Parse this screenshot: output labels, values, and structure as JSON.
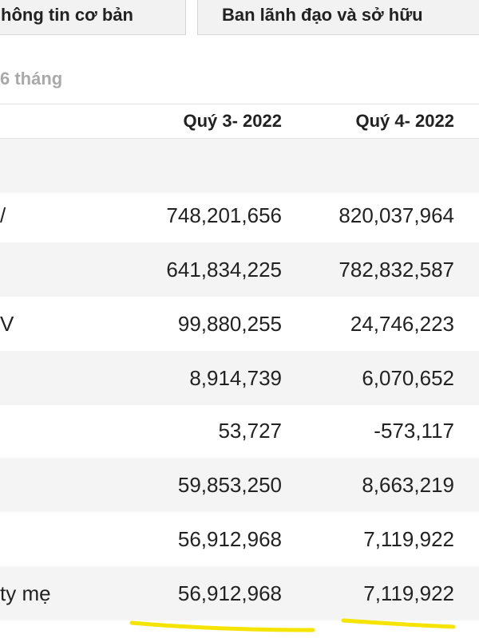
{
  "tabs": [
    {
      "label": "hông tin cơ bản"
    },
    {
      "label": "Ban lãnh đạo và sở hữu"
    }
  ],
  "period_label": "6 tháng",
  "table": {
    "headers": [
      "Quý 3- 2022",
      "Quý 4- 2022"
    ],
    "rows": [
      {
        "label": "",
        "q3": "",
        "q4": ""
      },
      {
        "label": "/",
        "q3": "748,201,656",
        "q4": "820,037,964"
      },
      {
        "label": "",
        "q3": "641,834,225",
        "q4": "782,832,587"
      },
      {
        "label": "V",
        "q3": "99,880,255",
        "q4": "24,746,223"
      },
      {
        "label": "",
        "q3": "8,914,739",
        "q4": "6,070,652"
      },
      {
        "label": "",
        "q3": "53,727",
        "q4": "-573,117"
      },
      {
        "label": "",
        "q3": "59,853,250",
        "q4": "8,663,219"
      },
      {
        "label": "",
        "q3": "56,912,968",
        "q4": "7,119,922"
      },
      {
        "label": "ty mẹ",
        "q3": "56,912,968",
        "q4": "7,119,922"
      }
    ]
  },
  "annotation": {
    "color": "#f5e400"
  }
}
